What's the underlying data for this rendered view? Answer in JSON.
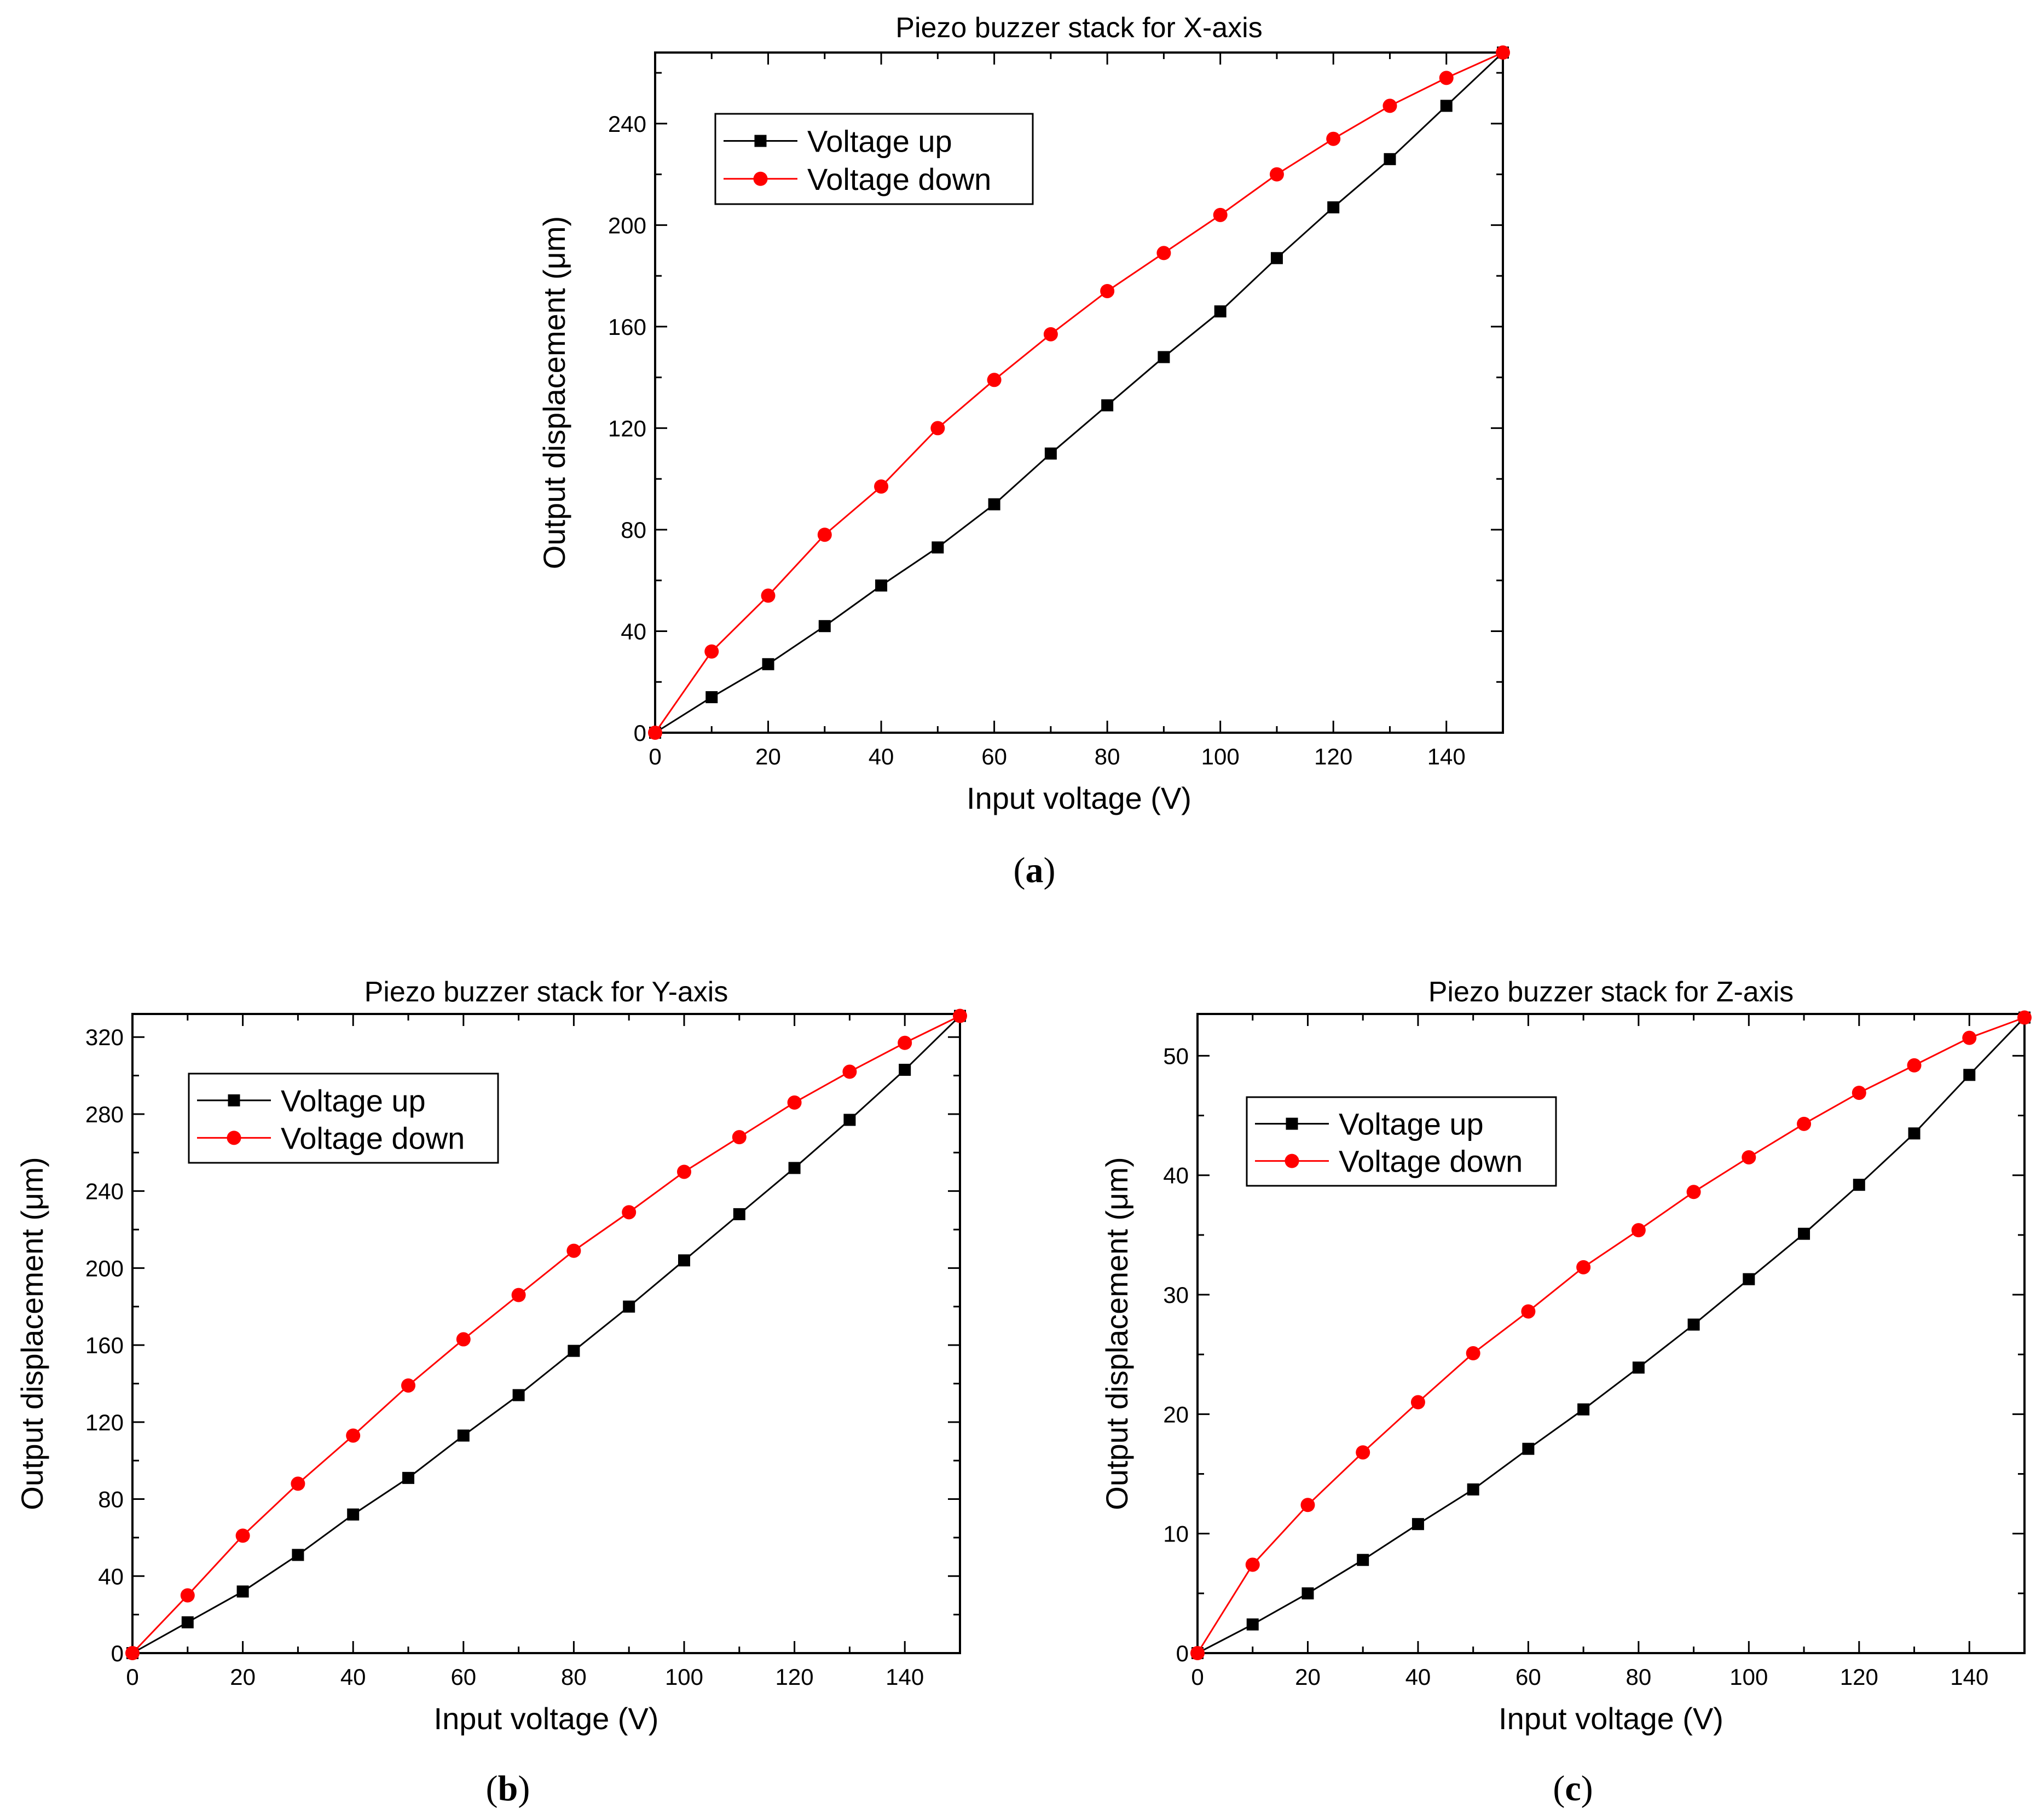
{
  "chart_data": [
    {
      "type": "line",
      "panel": "a",
      "title": "Piezo buzzer stack for X-axis",
      "xlabel": "Input voltage (V)",
      "ylabel": "Output displacement (μm)",
      "xlim": [
        0,
        150
      ],
      "ylim": [
        0,
        268
      ],
      "xticks": [
        0,
        20,
        40,
        60,
        80,
        100,
        120,
        140
      ],
      "yticks": [
        0,
        40,
        80,
        120,
        160,
        200,
        240
      ],
      "legend_position": "top-left",
      "x": [
        0,
        10,
        20,
        30,
        40,
        50,
        60,
        70,
        80,
        90,
        100,
        110,
        120,
        130,
        140,
        150
      ],
      "series": [
        {
          "name": "Voltage up",
          "color": "#000000",
          "marker": "square",
          "values": [
            0,
            14,
            27,
            42,
            58,
            73,
            90,
            110,
            129,
            148,
            166,
            187,
            207,
            226,
            247,
            268
          ]
        },
        {
          "name": "Voltage down",
          "color": "#ff0000",
          "marker": "circle",
          "values": [
            0,
            32,
            54,
            78,
            97,
            120,
            139,
            157,
            174,
            189,
            204,
            220,
            234,
            247,
            258,
            268
          ]
        }
      ]
    },
    {
      "type": "line",
      "panel": "b",
      "title": "Piezo buzzer stack for Y-axis",
      "xlabel": "Input voltage (V)",
      "ylabel": "Output displacement (μm)",
      "xlim": [
        0,
        150
      ],
      "ylim": [
        0,
        332
      ],
      "xticks": [
        0,
        20,
        40,
        60,
        80,
        100,
        120,
        140
      ],
      "yticks": [
        0,
        40,
        80,
        120,
        160,
        200,
        240,
        280,
        320
      ],
      "legend_position": "top-left",
      "x": [
        0,
        10,
        20,
        30,
        40,
        50,
        60,
        70,
        80,
        90,
        100,
        110,
        120,
        130,
        140,
        150
      ],
      "series": [
        {
          "name": "Voltage up",
          "color": "#000000",
          "marker": "square",
          "values": [
            0,
            16,
            32,
            51,
            72,
            91,
            113,
            134,
            157,
            180,
            204,
            228,
            252,
            277,
            303,
            331
          ]
        },
        {
          "name": "Voltage down",
          "color": "#ff0000",
          "marker": "circle",
          "values": [
            0,
            30,
            61,
            88,
            113,
            139,
            163,
            186,
            209,
            229,
            250,
            268,
            286,
            302,
            317,
            331
          ]
        }
      ]
    },
    {
      "type": "line",
      "panel": "c",
      "title": "Piezo buzzer stack for Z-axis",
      "xlabel": "Input voltage (V)",
      "ylabel": "Output displacement (μm)",
      "xlim": [
        0,
        150
      ],
      "ylim": [
        0,
        53.5
      ],
      "xticks": [
        0,
        20,
        40,
        60,
        80,
        100,
        120,
        140
      ],
      "yticks": [
        0,
        10,
        20,
        30,
        40,
        50
      ],
      "legend_position": "top-left",
      "x": [
        0,
        10,
        20,
        30,
        40,
        50,
        60,
        70,
        80,
        90,
        100,
        110,
        120,
        130,
        140,
        150
      ],
      "series": [
        {
          "name": "Voltage up",
          "color": "#000000",
          "marker": "square",
          "values": [
            0,
            2.4,
            5.0,
            7.8,
            10.8,
            13.7,
            17.1,
            20.4,
            23.9,
            27.5,
            31.3,
            35.1,
            39.2,
            43.5,
            48.4,
            53.2
          ]
        },
        {
          "name": "Voltage down",
          "color": "#ff0000",
          "marker": "circle",
          "values": [
            0,
            7.4,
            12.4,
            16.8,
            21.0,
            25.1,
            28.6,
            32.3,
            35.4,
            38.6,
            41.5,
            44.3,
            46.9,
            49.2,
            51.5,
            53.2
          ]
        }
      ]
    }
  ],
  "panel_labels": {
    "a": {
      "open": "(",
      "letter": "a",
      "close": ")"
    },
    "b": {
      "open": "(",
      "letter": "b",
      "close": ")"
    },
    "c": {
      "open": "(",
      "letter": "c",
      "close": ")"
    }
  }
}
